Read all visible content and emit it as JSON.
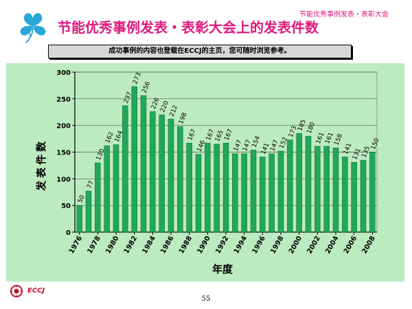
{
  "header": {
    "title": "节能优秀事例发表・表彰大会上的发表件数",
    "corner_label": "节能优秀事例发表・表彰大会",
    "logo_icon": "clover-icon",
    "accent_color": "#e0197d"
  },
  "notice": {
    "text": "成功事例的内容也登载在ECCJ的主页，您可随时浏览参考。"
  },
  "chart_data": {
    "type": "bar",
    "categories": [
      "1976",
      "1977",
      "1978",
      "1979",
      "1980",
      "1981",
      "1982",
      "1983",
      "1984",
      "1985",
      "1986",
      "1987",
      "1988",
      "1989",
      "1990",
      "1991",
      "1992",
      "1993",
      "1994",
      "1995",
      "1996",
      "1997",
      "1998",
      "1999",
      "2000",
      "2001",
      "2002",
      "2003",
      "2004",
      "2005",
      "2006",
      "2007",
      "2008"
    ],
    "x_tick_labels": [
      "1976",
      "1978",
      "1980",
      "1982",
      "1984",
      "1986",
      "1988",
      "1990",
      "1992",
      "1994",
      "1996",
      "1998",
      "2000",
      "2002",
      "2004",
      "2006",
      "2008"
    ],
    "values": [
      50,
      77,
      130,
      162,
      164,
      237,
      273,
      256,
      226,
      220,
      212,
      198,
      167,
      146,
      167,
      165,
      167,
      147,
      147,
      154,
      141,
      147,
      152,
      173,
      185,
      180,
      161,
      161,
      158,
      141,
      131,
      135,
      150
    ],
    "data_labels": [
      "50",
      "77",
      "130",
      "162",
      "164",
      "237",
      "273",
      "256",
      "226",
      "220",
      "212",
      "198",
      "167",
      "146",
      "167",
      "165",
      "167",
      "147",
      "147",
      "154",
      "141",
      "147",
      "152",
      "173",
      "185",
      "180",
      "161",
      "161",
      "158",
      "141",
      "131",
      "135",
      "150"
    ],
    "title": "",
    "xlabel": "年度",
    "ylabel": "发表件数",
    "ylim": [
      0,
      300
    ],
    "yticks": [
      "0",
      "50",
      "100",
      "150",
      "200",
      "250",
      "300"
    ],
    "grid": true,
    "bar_color": "#23a65a",
    "background_color": "#bcebbf"
  },
  "footer": {
    "logo_text": "ECCJ",
    "logo_icon": "eccj-sun-icon",
    "page_number": "55"
  }
}
